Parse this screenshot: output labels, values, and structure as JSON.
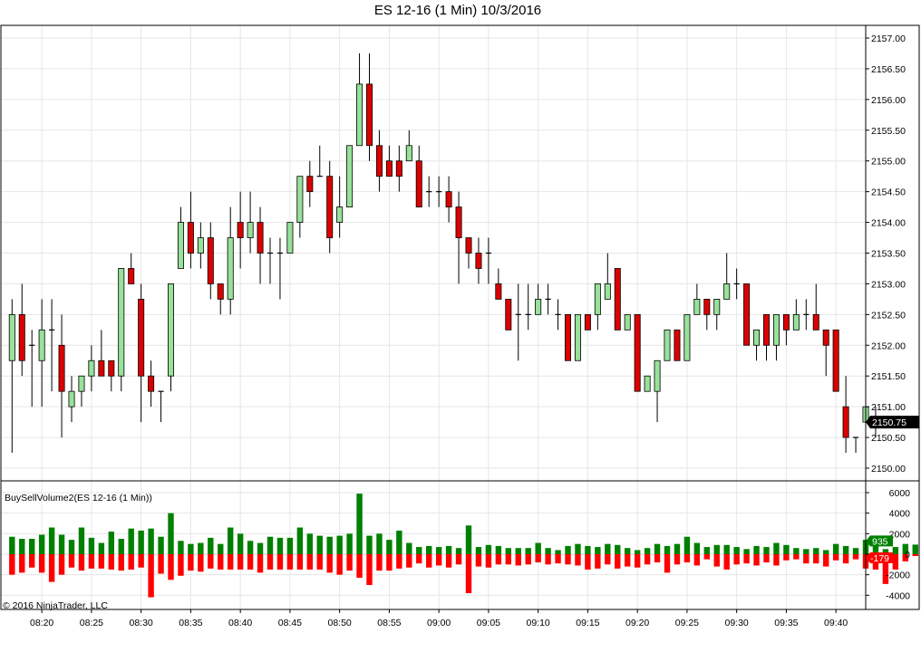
{
  "chart_data": {
    "type": "candlestick",
    "title": "ES 12-16 (1 Min)  10/3/2016",
    "x_tick_labels": [
      "08:20",
      "08:25",
      "08:30",
      "08:35",
      "08:40",
      "08:45",
      "08:50",
      "08:55",
      "09:00",
      "09:05",
      "09:10",
      "09:15",
      "09:20",
      "09:25",
      "09:30",
      "09:35",
      "09:40"
    ],
    "price_axis": {
      "min": 2150.0,
      "max": 2157.0,
      "step": 0.5,
      "tick_labels": [
        "2157.00",
        "2156.50",
        "2156.00",
        "2155.50",
        "2155.00",
        "2154.50",
        "2154.00",
        "2153.50",
        "2153.00",
        "2152.50",
        "2152.00",
        "2151.50",
        "2151.00",
        "2150.50",
        "2150.00"
      ]
    },
    "last_price_label": "2150.75",
    "candles": [
      [
        2151.75,
        2152.5,
        2152.75,
        2150.25
      ],
      [
        2152.5,
        2151.75,
        2153.0,
        2151.5
      ],
      [
        2152.0,
        2152.0,
        2152.25,
        2151.0
      ],
      [
        2151.75,
        2152.25,
        2152.75,
        2151.0
      ],
      [
        2152.25,
        2152.25,
        2152.75,
        2151.25
      ],
      [
        2152.0,
        2151.25,
        2152.5,
        2150.5
      ],
      [
        2151.0,
        2151.25,
        2151.5,
        2150.75
      ],
      [
        2151.25,
        2151.5,
        2151.5,
        2151.0
      ],
      [
        2151.5,
        2151.75,
        2152.0,
        2151.25
      ],
      [
        2151.75,
        2151.5,
        2152.25,
        2151.5
      ],
      [
        2151.75,
        2151.5,
        2151.75,
        2151.25
      ],
      [
        2151.5,
        2153.25,
        2153.25,
        2151.25
      ],
      [
        2153.25,
        2153.0,
        2153.5,
        2153.0
      ],
      [
        2152.75,
        2151.5,
        2153.0,
        2150.75
      ],
      [
        2151.5,
        2151.25,
        2151.75,
        2151.0
      ],
      [
        2151.25,
        2151.25,
        2151.25,
        2150.75
      ],
      [
        2151.5,
        2153.0,
        2153.0,
        2151.25
      ],
      [
        2153.25,
        2154.0,
        2154.25,
        2153.25
      ],
      [
        2154.0,
        2153.5,
        2154.5,
        2153.25
      ],
      [
        2153.5,
        2153.75,
        2154.0,
        2153.25
      ],
      [
        2153.75,
        2153.0,
        2154.0,
        2152.75
      ],
      [
        2153.0,
        2152.75,
        2153.0,
        2152.5
      ],
      [
        2152.75,
        2153.75,
        2154.25,
        2152.5
      ],
      [
        2154.0,
        2153.75,
        2154.5,
        2153.25
      ],
      [
        2153.75,
        2154.0,
        2154.5,
        2153.5
      ],
      [
        2154.0,
        2153.5,
        2154.25,
        2153.0
      ],
      [
        2153.5,
        2153.5,
        2153.75,
        2153.0
      ],
      [
        2153.5,
        2153.5,
        2153.75,
        2152.75
      ],
      [
        2153.5,
        2154.0,
        2154.0,
        2153.5
      ],
      [
        2154.0,
        2154.75,
        2154.75,
        2153.75
      ],
      [
        2154.75,
        2154.5,
        2155.0,
        2154.25
      ],
      [
        2154.75,
        2154.75,
        2155.25,
        2154.75
      ],
      [
        2154.75,
        2153.75,
        2155.0,
        2153.5
      ],
      [
        2154.0,
        2154.25,
        2154.75,
        2153.75
      ],
      [
        2154.25,
        2155.25,
        2155.25,
        2154.5
      ],
      [
        2155.25,
        2156.25,
        2156.75,
        2155.25
      ],
      [
        2156.25,
        2155.25,
        2156.75,
        2155.0
      ],
      [
        2155.25,
        2154.75,
        2155.5,
        2154.5
      ],
      [
        2155.0,
        2154.75,
        2155.25,
        2154.75
      ],
      [
        2155.0,
        2154.75,
        2155.25,
        2154.5
      ],
      [
        2155.0,
        2155.25,
        2155.5,
        2155.0
      ],
      [
        2155.0,
        2154.25,
        2155.25,
        2154.25
      ],
      [
        2154.5,
        2154.5,
        2154.75,
        2154.25
      ],
      [
        2154.5,
        2154.5,
        2154.75,
        2154.25
      ],
      [
        2154.5,
        2154.25,
        2154.75,
        2154.0
      ],
      [
        2154.25,
        2153.75,
        2154.5,
        2153.0
      ],
      [
        2153.75,
        2153.5,
        2153.75,
        2153.25
      ],
      [
        2153.5,
        2153.25,
        2153.75,
        2153.0
      ],
      [
        2153.5,
        2153.5,
        2153.75,
        2153.0
      ],
      [
        2153.0,
        2152.75,
        2153.25,
        2152.75
      ],
      [
        2152.75,
        2152.25,
        2152.75,
        2152.25
      ],
      [
        2152.5,
        2152.5,
        2153.0,
        2151.75
      ],
      [
        2152.5,
        2152.5,
        2153.0,
        2152.25
      ],
      [
        2152.5,
        2152.75,
        2153.0,
        2152.5
      ],
      [
        2152.75,
        2152.75,
        2153.0,
        2152.5
      ],
      [
        2152.5,
        2152.5,
        2152.75,
        2152.25
      ],
      [
        2152.5,
        2151.75,
        2152.5,
        2151.75
      ],
      [
        2151.75,
        2152.5,
        2152.5,
        2151.75
      ],
      [
        2152.5,
        2152.25,
        2152.5,
        2152.25
      ],
      [
        2152.5,
        2153.0,
        2153.0,
        2152.25
      ],
      [
        2152.75,
        2153.0,
        2153.5,
        2152.75
      ],
      [
        2153.25,
        2152.25,
        2153.25,
        2152.25
      ],
      [
        2152.25,
        2152.5,
        2152.5,
        2152.25
      ],
      [
        2152.5,
        2151.25,
        2152.5,
        2151.25
      ],
      [
        2151.25,
        2151.5,
        2151.5,
        2151.25
      ],
      [
        2151.25,
        2151.75,
        2151.75,
        2150.75
      ],
      [
        2151.75,
        2152.25,
        2152.25,
        2151.75
      ],
      [
        2152.25,
        2151.75,
        2152.25,
        2151.75
      ],
      [
        2151.75,
        2152.5,
        2152.5,
        2151.75
      ],
      [
        2152.5,
        2152.75,
        2153.0,
        2152.5
      ],
      [
        2152.75,
        2152.5,
        2152.75,
        2152.25
      ],
      [
        2152.5,
        2152.75,
        2152.75,
        2152.25
      ],
      [
        2152.75,
        2153.0,
        2153.5,
        2152.75
      ],
      [
        2153.0,
        2153.0,
        2153.25,
        2152.75
      ],
      [
        2153.0,
        2152.0,
        2153.0,
        2152.0
      ],
      [
        2152.0,
        2152.25,
        2152.25,
        2151.75
      ],
      [
        2152.5,
        2152.0,
        2152.5,
        2151.75
      ],
      [
        2152.0,
        2152.5,
        2152.5,
        2151.75
      ],
      [
        2152.5,
        2152.25,
        2152.5,
        2152.0
      ],
      [
        2152.25,
        2152.5,
        2152.75,
        2152.25
      ],
      [
        2152.5,
        2152.5,
        2152.75,
        2152.25
      ],
      [
        2152.5,
        2152.25,
        2153.0,
        2152.25
      ],
      [
        2152.25,
        2152.0,
        2152.25,
        2151.5
      ],
      [
        2152.25,
        2151.25,
        2152.25,
        2151.25
      ],
      [
        2151.0,
        2150.5,
        2151.5,
        2150.25
      ],
      [
        2150.5,
        2150.5,
        2150.5,
        2150.25
      ],
      [
        2150.75,
        2151.0,
        2151.0,
        2150.25
      ],
      [
        2150.75,
        2150.75,
        2151.0,
        2150.5
      ]
    ],
    "indicator": {
      "label": "BuySellVolume2(ES 12-16 (1 Min))",
      "y_axis": {
        "min": -4000,
        "max": 6000,
        "tick_labels": [
          "6000",
          "4000",
          "2000",
          "0",
          "-2000",
          "-4000"
        ]
      },
      "buy_label": "935",
      "sell_label": "-179",
      "buy": [
        1700,
        1500,
        1500,
        1900,
        2600,
        1900,
        1400,
        2600,
        1600,
        1100,
        2200,
        1500,
        2500,
        2300,
        2500,
        1700,
        4000,
        1300,
        1000,
        1100,
        1600,
        1000,
        2600,
        2000,
        1300,
        1100,
        1700,
        1600,
        1600,
        2600,
        2000,
        1800,
        1700,
        1800,
        2000,
        5900,
        1800,
        2000,
        1400,
        2300,
        1100,
        700,
        800,
        700,
        800,
        600,
        2800,
        700,
        900,
        800,
        600,
        600,
        600,
        1100,
        600,
        400,
        800,
        1000,
        800,
        700,
        1000,
        900,
        600,
        400,
        600,
        1000,
        800,
        1000,
        1700,
        1100,
        700,
        900,
        900,
        700,
        500,
        800,
        700,
        1100,
        900,
        600,
        500,
        600,
        400,
        1000,
        800,
        600,
        1400,
        800,
        500,
        700,
        1000,
        935
      ],
      "sell": [
        2000,
        1800,
        1300,
        1800,
        2700,
        2000,
        1300,
        1600,
        1400,
        1400,
        1500,
        1600,
        1500,
        1300,
        4200,
        1900,
        2500,
        2100,
        1600,
        1700,
        1400,
        1500,
        1500,
        1500,
        1500,
        1800,
        1500,
        1500,
        1500,
        1500,
        1500,
        1500,
        1800,
        2000,
        1600,
        2300,
        3000,
        1600,
        1600,
        1400,
        1300,
        900,
        1300,
        1100,
        1300,
        1000,
        3800,
        1200,
        1300,
        1000,
        1000,
        1100,
        1000,
        800,
        1000,
        900,
        1000,
        1100,
        1500,
        1400,
        1000,
        1400,
        1200,
        1300,
        1000,
        800,
        1800,
        1000,
        800,
        1100,
        500,
        1200,
        1500,
        1000,
        900,
        1100,
        800,
        1100,
        600,
        500,
        900,
        900,
        1200,
        600,
        900,
        500,
        1400,
        1500,
        2900,
        1500,
        700,
        179
      ]
    }
  }
}
